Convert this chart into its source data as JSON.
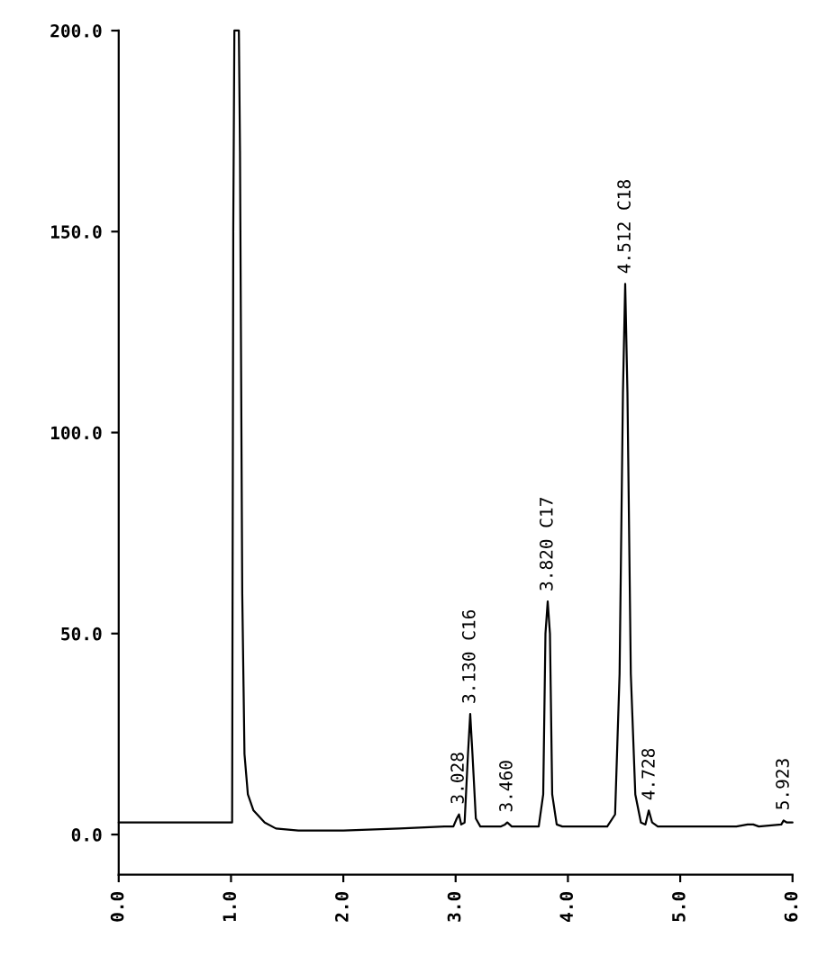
{
  "chart_data": {
    "type": "line",
    "x": [
      0.0,
      1.0,
      1.01,
      1.02,
      1.03,
      1.07,
      1.08,
      1.1,
      1.12,
      1.15,
      1.2,
      1.3,
      1.4,
      1.6,
      2.0,
      2.5,
      2.9,
      2.98,
      3.01,
      3.03,
      3.05,
      3.08,
      3.11,
      3.13,
      3.15,
      3.18,
      3.22,
      3.4,
      3.44,
      3.46,
      3.5,
      3.74,
      3.78,
      3.8,
      3.82,
      3.84,
      3.86,
      3.9,
      3.95,
      4.35,
      4.42,
      4.46,
      4.49,
      4.51,
      4.53,
      4.56,
      4.6,
      4.65,
      4.69,
      4.72,
      4.75,
      4.8,
      5.5,
      5.6,
      5.65,
      5.7,
      5.9,
      5.92,
      5.95,
      6.0
    ],
    "series": [
      {
        "color": "#000000",
        "values": [
          3,
          3,
          3,
          150,
          200,
          200,
          170,
          60,
          20,
          10,
          6,
          3,
          1.5,
          1,
          1,
          1.5,
          2,
          2,
          4,
          5,
          2.5,
          3,
          20,
          30,
          20,
          4,
          2,
          2,
          2.5,
          3,
          2,
          2,
          10,
          50,
          58,
          50,
          10,
          2.5,
          2,
          2,
          5,
          40,
          110,
          137,
          110,
          40,
          10,
          3,
          2.5,
          6,
          3,
          2,
          2,
          2.5,
          2.5,
          2,
          2.5,
          3.5,
          3,
          3
        ]
      }
    ],
    "xlim": [
      0,
      6.0
    ],
    "ylim": [
      -10,
      200
    ],
    "xticks": [
      {
        "value": 0,
        "label": "0.0"
      },
      {
        "value": 1,
        "label": "1.0"
      },
      {
        "value": 2,
        "label": "2.0"
      },
      {
        "value": 3,
        "label": "3.0"
      },
      {
        "value": 4,
        "label": "4.0"
      },
      {
        "value": 5,
        "label": "5.0"
      },
      {
        "value": 6,
        "label": "6.0"
      }
    ],
    "yticks": [
      {
        "value": 0,
        "label": "0.0"
      },
      {
        "value": 50,
        "label": "50.0"
      },
      {
        "value": 100,
        "label": "100.0"
      },
      {
        "value": 150,
        "label": "150.0"
      },
      {
        "value": 200,
        "label": "200.0"
      }
    ],
    "annotations": [
      {
        "text": "3.028",
        "x": 3.028,
        "y": 5
      },
      {
        "text": "3.130 C16",
        "x": 3.13,
        "y": 30
      },
      {
        "text": "3.460",
        "x": 3.46,
        "y": 3
      },
      {
        "text": "3.820 C17",
        "x": 3.82,
        "y": 58
      },
      {
        "text": "4.512 C18",
        "x": 4.512,
        "y": 137
      },
      {
        "text": "4.728",
        "x": 4.728,
        "y": 6
      },
      {
        "text": "5.923",
        "x": 5.923,
        "y": 3.5
      }
    ],
    "grid": false,
    "legend": false,
    "marker": "none",
    "line_style": "solid"
  }
}
